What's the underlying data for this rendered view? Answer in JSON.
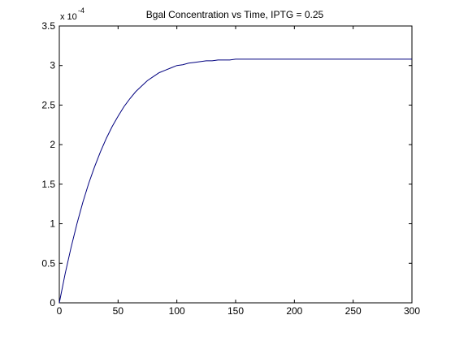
{
  "chart_data": {
    "type": "line",
    "title": "Bgal Concentration vs Time, IPTG = 0.25",
    "xlabel": "",
    "ylabel": "",
    "xlim": [
      0,
      300
    ],
    "ylim": [
      0,
      3.5
    ],
    "y_multiplier_label": {
      "base": "x 10",
      "exponent": "-4"
    },
    "xticks": [
      0,
      50,
      100,
      150,
      200,
      250,
      300
    ],
    "xtick_labels": [
      "0",
      "50",
      "100",
      "150",
      "200",
      "250",
      "300"
    ],
    "yticks": [
      0,
      0.5,
      1,
      1.5,
      2,
      2.5,
      3,
      3.5
    ],
    "ytick_labels": [
      "0",
      "0.5",
      "1",
      "1.5",
      "2",
      "2.5",
      "3",
      "3.5"
    ],
    "grid": false,
    "line_color": "#00007f",
    "series": [
      {
        "x": [
          0,
          5,
          10,
          15,
          20,
          25,
          30,
          35,
          40,
          45,
          50,
          55,
          60,
          65,
          70,
          75,
          80,
          85,
          90,
          95,
          100,
          105,
          110,
          115,
          120,
          125,
          130,
          135,
          140,
          145,
          150,
          155,
          160,
          165,
          170,
          175,
          180,
          185,
          190,
          195,
          200,
          205,
          210,
          215,
          220,
          225,
          230,
          235,
          240,
          245,
          250,
          255,
          260,
          265,
          270,
          275,
          280,
          285,
          290,
          295,
          300
        ],
        "y": [
          0,
          0.37,
          0.7,
          1.0,
          1.27,
          1.51,
          1.72,
          1.91,
          2.08,
          2.23,
          2.36,
          2.48,
          2.58,
          2.67,
          2.74,
          2.81,
          2.86,
          2.91,
          2.94,
          2.97,
          3.0,
          3.01,
          3.03,
          3.04,
          3.05,
          3.06,
          3.06,
          3.07,
          3.07,
          3.07,
          3.08,
          3.08,
          3.08,
          3.08,
          3.08,
          3.08,
          3.08,
          3.08,
          3.08,
          3.08,
          3.08,
          3.08,
          3.08,
          3.08,
          3.08,
          3.08,
          3.08,
          3.08,
          3.08,
          3.08,
          3.08,
          3.08,
          3.08,
          3.08,
          3.08,
          3.08,
          3.08,
          3.08,
          3.08,
          3.08,
          3.08
        ]
      }
    ]
  }
}
